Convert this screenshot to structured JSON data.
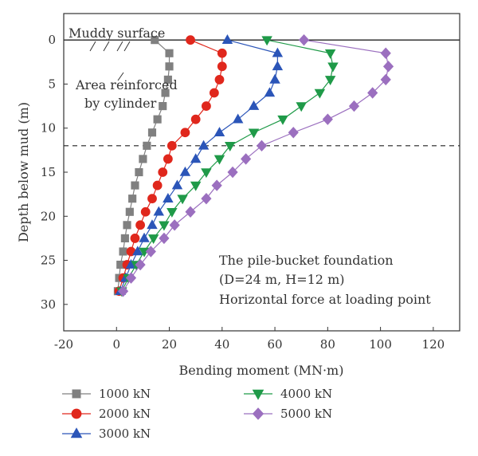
{
  "chart_data": {
    "type": "line",
    "title": "",
    "xlabel": "Bending moment (MN·m)",
    "ylabel": "Depth below mud (m)",
    "xlim": [
      -20,
      130
    ],
    "ylim": [
      33,
      -3
    ],
    "x_ticks": [
      -20,
      0,
      20,
      40,
      60,
      80,
      100,
      120
    ],
    "y_ticks": [
      0,
      5,
      10,
      15,
      20,
      25,
      30
    ],
    "y_inverted": true,
    "grid": false,
    "legend_position": "bottom",
    "reference_lines": [
      {
        "orientation": "horizontal",
        "y": 0,
        "style": "solid"
      },
      {
        "orientation": "horizontal",
        "y": 12,
        "style": "dashed"
      }
    ],
    "annotations": {
      "muddy_surface": "Muddy surface",
      "area_line1": "Area reinforced",
      "area_line2": "by cylinder",
      "foundation_line1": "The pile-bucket foundation",
      "foundation_line2": "(D=24 m, H=12 m)",
      "foundation_line3": "Horizontal force at loading point"
    },
    "series": [
      {
        "name": "1000 kN",
        "color": "#808080",
        "marker": "square",
        "y": [
          0,
          1.5,
          3,
          4.5,
          6,
          7.5,
          9,
          10.5,
          12,
          13.5,
          15,
          16.5,
          18,
          19.5,
          21,
          22.5,
          24,
          25.5,
          27,
          28.5
        ],
        "x": [
          14.5,
          20,
          20,
          19.5,
          18.5,
          17.5,
          15.5,
          13.5,
          11.5,
          10,
          8.5,
          7,
          6,
          5,
          4,
          3.2,
          2.5,
          1.5,
          1,
          0.5
        ]
      },
      {
        "name": "2000 kN",
        "color": "#e0271c",
        "marker": "circle",
        "y": [
          0,
          1.5,
          3,
          4.5,
          6,
          7.5,
          9,
          10.5,
          12,
          13.5,
          15,
          16.5,
          18,
          19.5,
          21,
          22.5,
          24,
          25.5,
          27,
          28.5
        ],
        "x": [
          28,
          40,
          40,
          39,
          37,
          34,
          30,
          26,
          21,
          19.5,
          17.5,
          15.5,
          13.5,
          11,
          9,
          7,
          5.5,
          4,
          2.5,
          1
        ]
      },
      {
        "name": "3000 kN",
        "color": "#2b55b8",
        "marker": "triangle-up",
        "y": [
          0,
          1.5,
          3,
          4.5,
          6,
          7.5,
          9,
          10.5,
          12,
          13.5,
          15,
          16.5,
          18,
          19.5,
          21,
          22.5,
          24,
          25.5,
          27,
          28.5
        ],
        "x": [
          42,
          61,
          61,
          60,
          58,
          52,
          46,
          39,
          33,
          30,
          26,
          23,
          19.5,
          16,
          13.5,
          10.5,
          8,
          5.5,
          3.5,
          1.5
        ]
      },
      {
        "name": "4000 kN",
        "color": "#1f9a48",
        "marker": "triangle-down",
        "y": [
          0,
          1.5,
          3,
          4.5,
          6,
          7.5,
          9,
          10.5,
          12,
          13.5,
          15,
          16.5,
          18,
          19.5,
          21,
          22.5,
          24,
          25.5,
          27,
          28.5
        ],
        "x": [
          57,
          81,
          82,
          81,
          77,
          70,
          63,
          52,
          43,
          39,
          34,
          30,
          25,
          21,
          18,
          14,
          10.5,
          7.5,
          4.5,
          2
        ]
      },
      {
        "name": "5000 kN",
        "color": "#9b6fbf",
        "marker": "diamond",
        "y": [
          0,
          1.5,
          3,
          4.5,
          6,
          7.5,
          9,
          10.5,
          12,
          13.5,
          15,
          16.5,
          18,
          19.5,
          21,
          22.5,
          24,
          25.5,
          27,
          28.5
        ],
        "x": [
          71,
          102,
          103,
          102,
          97,
          90,
          80,
          67,
          55,
          49,
          44,
          38,
          34,
          28,
          22,
          18,
          13,
          9,
          5.5,
          2.5
        ]
      }
    ]
  }
}
